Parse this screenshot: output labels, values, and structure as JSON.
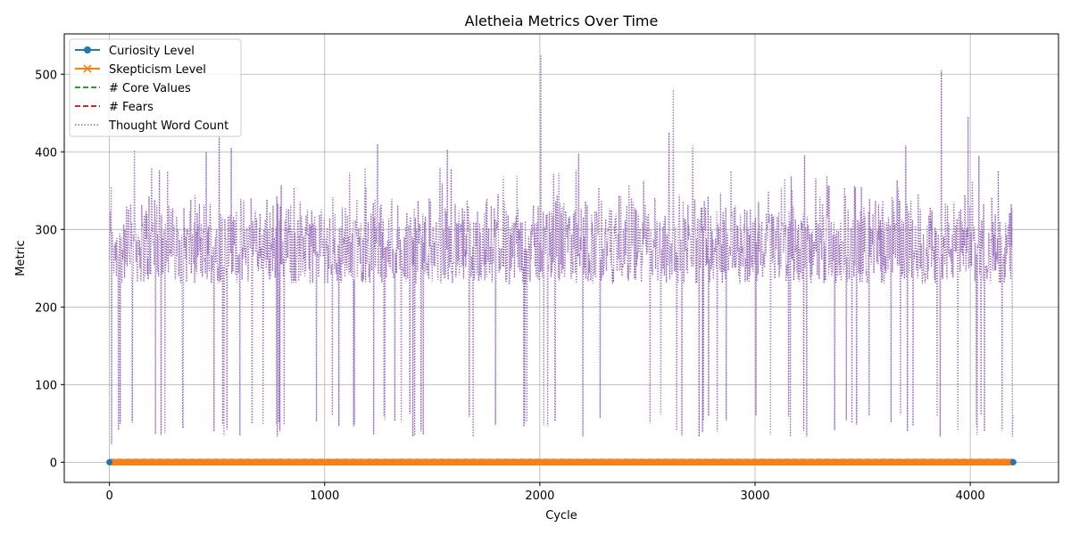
{
  "chart_data": {
    "type": "line",
    "title": "Aletheia Metrics Over Time",
    "xlabel": "Cycle",
    "ylabel": "Metric",
    "xlim": [
      -210,
      4410
    ],
    "ylim": [
      -26,
      552
    ],
    "xticks": [
      0,
      1000,
      2000,
      3000,
      4000
    ],
    "yticks": [
      0,
      100,
      200,
      300,
      400,
      500
    ],
    "grid": true,
    "legend_position": "top-left",
    "cycles": [
      0,
      4200
    ],
    "series": [
      {
        "name": "Curiosity Level",
        "color": "#1f77b4",
        "style": "solid",
        "marker": "circle",
        "value": 0
      },
      {
        "name": "Skepticism Level",
        "color": "#ff7f0e",
        "style": "solid",
        "marker": "x",
        "value": 0
      },
      {
        "name": "# Core Values",
        "color": "#2ca02c",
        "style": "dashed",
        "value": 3
      },
      {
        "name": "# Fears",
        "color": "#d62728",
        "style": "dashed",
        "value": 3
      },
      {
        "name": "Thought Word Count",
        "color": "#9467bd",
        "style": "dotted",
        "typical_range": [
          200,
          360
        ],
        "min": 23,
        "max": 525,
        "peaks": [
          {
            "x": 8,
            "y": 355
          },
          {
            "x": 115,
            "y": 402
          },
          {
            "x": 240,
            "y": 378
          },
          {
            "x": 450,
            "y": 400
          },
          {
            "x": 510,
            "y": 420
          },
          {
            "x": 565,
            "y": 405
          },
          {
            "x": 780,
            "y": 402
          },
          {
            "x": 1245,
            "y": 410
          },
          {
            "x": 1570,
            "y": 403
          },
          {
            "x": 2003,
            "y": 525
          },
          {
            "x": 2180,
            "y": 398
          },
          {
            "x": 2600,
            "y": 425
          },
          {
            "x": 2620,
            "y": 480
          },
          {
            "x": 2710,
            "y": 408
          },
          {
            "x": 3230,
            "y": 396
          },
          {
            "x": 3700,
            "y": 408
          },
          {
            "x": 3865,
            "y": 505
          },
          {
            "x": 3990,
            "y": 445
          },
          {
            "x": 4040,
            "y": 395
          }
        ],
        "dips": [
          {
            "x": 10,
            "y": 23
          },
          {
            "x": 240,
            "y": 35
          },
          {
            "x": 780,
            "y": 33
          },
          {
            "x": 1410,
            "y": 33
          },
          {
            "x": 1690,
            "y": 33
          },
          {
            "x": 2200,
            "y": 33
          },
          {
            "x": 2740,
            "y": 33
          },
          {
            "x": 3240,
            "y": 33
          },
          {
            "x": 3860,
            "y": 33
          },
          {
            "x": 4195,
            "y": 33
          }
        ]
      }
    ]
  }
}
